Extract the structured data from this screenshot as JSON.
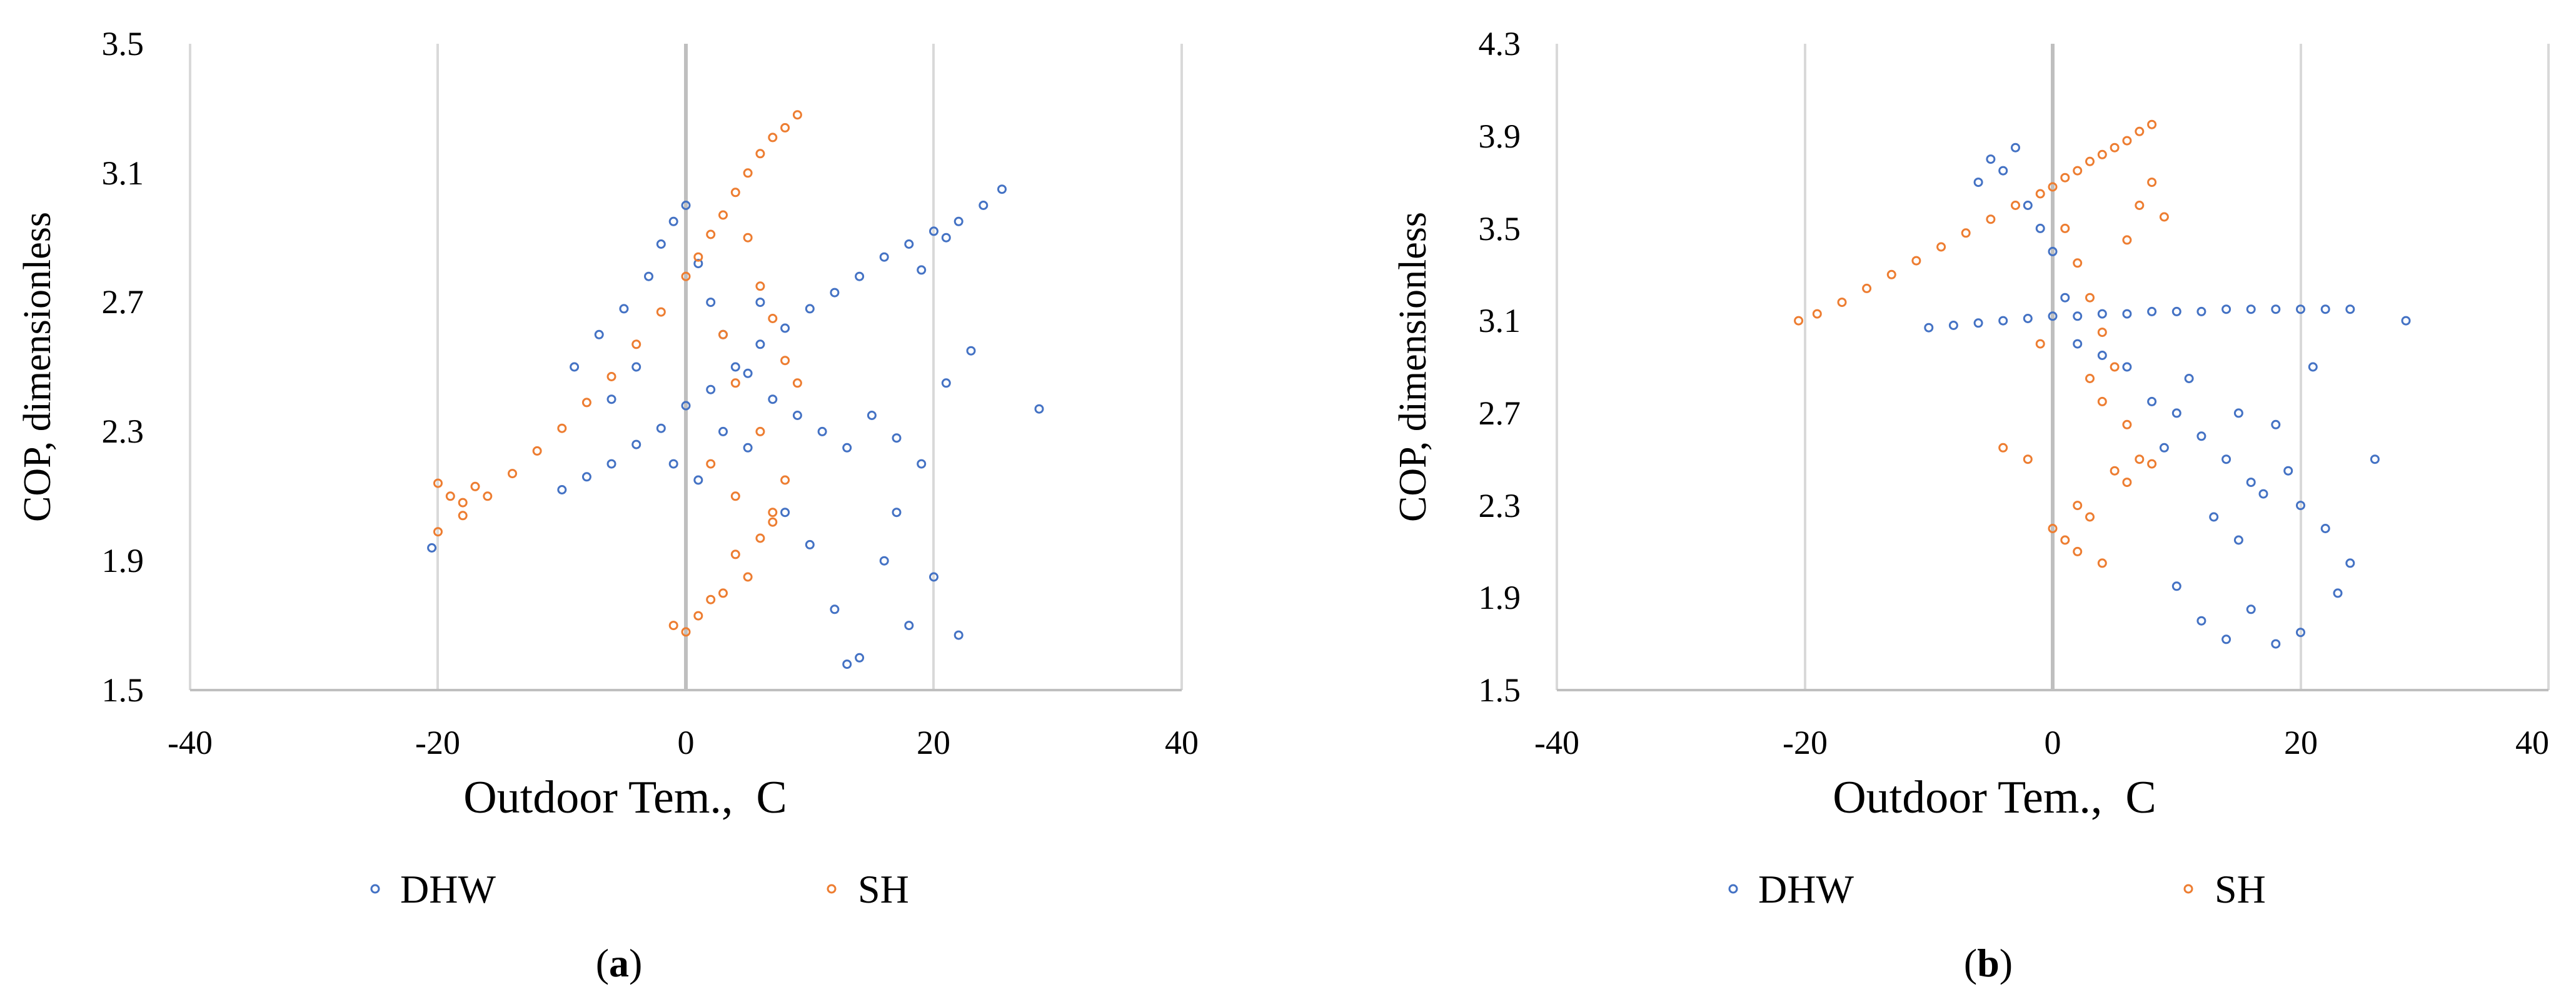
{
  "colors": {
    "DHW": "#4472C4",
    "SH": "#ED7D31",
    "grid": "#D9D9D9",
    "zero_axis": "#BFBFBF"
  },
  "chart_data": [
    {
      "type": "scatter",
      "panel": "a",
      "caption": "(a)",
      "caption_parts": [
        "(",
        "a",
        ")"
      ],
      "xlabel": "Outdoor Tem.,  C",
      "ylabel": "COP, dimensionless",
      "xlim": [
        -40,
        40
      ],
      "ylim": [
        1.5,
        3.5
      ],
      "xticks": [
        -40,
        -20,
        0,
        20,
        40
      ],
      "yticks": [
        1.5,
        1.9,
        2.3,
        2.7,
        3.1,
        3.5
      ],
      "xtick_labels": [
        "-40",
        "-20",
        "0",
        "20",
        "40"
      ],
      "ytick_labels": [
        "1.5",
        "1.9",
        "2.3",
        "2.7",
        "3.1",
        "3.5"
      ],
      "grid": "vertical",
      "legend": "bottom",
      "series": [
        {
          "name": "DHW",
          "points": [
            [
              -20.5,
              1.94
            ],
            [
              -10.0,
              2.12
            ],
            [
              -8.0,
              2.16
            ],
            [
              -6.0,
              2.2
            ],
            [
              -4.0,
              2.26
            ],
            [
              -2.0,
              2.31
            ],
            [
              0.0,
              2.38
            ],
            [
              2.0,
              2.43
            ],
            [
              4.0,
              2.5
            ],
            [
              6.0,
              2.57
            ],
            [
              8.0,
              2.62
            ],
            [
              10.0,
              2.68
            ],
            [
              12.0,
              2.73
            ],
            [
              14.0,
              2.78
            ],
            [
              16.0,
              2.84
            ],
            [
              18.0,
              2.88
            ],
            [
              20.0,
              2.92
            ],
            [
              22.0,
              2.95
            ],
            [
              24.0,
              3.0
            ],
            [
              25.5,
              3.05
            ],
            [
              -9.0,
              2.5
            ],
            [
              -7.0,
              2.6
            ],
            [
              -5.0,
              2.68
            ],
            [
              -3.0,
              2.78
            ],
            [
              -2.0,
              2.88
            ],
            [
              -1.0,
              2.95
            ],
            [
              0.0,
              3.0
            ],
            [
              1.0,
              2.82
            ],
            [
              2.0,
              2.7
            ],
            [
              3.0,
              2.6
            ],
            [
              5.0,
              2.48
            ],
            [
              7.0,
              2.4
            ],
            [
              9.0,
              2.35
            ],
            [
              11.0,
              2.3
            ],
            [
              13.0,
              2.25
            ],
            [
              15.0,
              2.35
            ],
            [
              17.0,
              2.28
            ],
            [
              19.0,
              2.2
            ],
            [
              21.0,
              2.45
            ],
            [
              23.0,
              2.55
            ],
            [
              28.5,
              2.37
            ],
            [
              8.0,
              2.05
            ],
            [
              10.0,
              1.95
            ],
            [
              12.0,
              1.75
            ],
            [
              14.0,
              1.6
            ],
            [
              16.0,
              1.9
            ],
            [
              18.0,
              1.7
            ],
            [
              20.0,
              1.85
            ],
            [
              22.0,
              1.67
            ],
            [
              -1.0,
              2.2
            ],
            [
              1.0,
              2.15
            ],
            [
              3.0,
              2.3
            ],
            [
              5.0,
              2.25
            ],
            [
              13.0,
              1.58
            ],
            [
              17.0,
              2.05
            ],
            [
              21.0,
              2.9
            ],
            [
              19.0,
              2.8
            ],
            [
              -6.0,
              2.4
            ],
            [
              -4.0,
              2.5
            ],
            [
              6.0,
              2.7
            ]
          ]
        },
        {
          "name": "SH",
          "points": [
            [
              -20.0,
              2.14
            ],
            [
              -19.0,
              2.1
            ],
            [
              -18.0,
              2.08
            ],
            [
              -17.0,
              2.13
            ],
            [
              -20.0,
              1.99
            ],
            [
              -18.0,
              2.04
            ],
            [
              -16.0,
              2.1
            ],
            [
              -14.0,
              2.17
            ],
            [
              -12.0,
              2.24
            ],
            [
              -10.0,
              2.31
            ],
            [
              -8.0,
              2.39
            ],
            [
              -6.0,
              2.47
            ],
            [
              -4.0,
              2.57
            ],
            [
              -2.0,
              2.67
            ],
            [
              0.0,
              2.78
            ],
            [
              1.0,
              2.84
            ],
            [
              2.0,
              2.91
            ],
            [
              3.0,
              2.97
            ],
            [
              4.0,
              3.04
            ],
            [
              5.0,
              3.1
            ],
            [
              6.0,
              3.16
            ],
            [
              7.0,
              3.21
            ],
            [
              8.0,
              3.24
            ],
            [
              9.0,
              3.28
            ],
            [
              5.0,
              2.9
            ],
            [
              6.0,
              2.75
            ],
            [
              7.0,
              2.65
            ],
            [
              8.0,
              2.52
            ],
            [
              9.0,
              2.45
            ],
            [
              3.0,
              2.6
            ],
            [
              4.0,
              2.45
            ],
            [
              2.0,
              2.2
            ],
            [
              4.0,
              2.1
            ],
            [
              6.0,
              2.3
            ],
            [
              7.0,
              2.05
            ],
            [
              3.0,
              1.8
            ],
            [
              4.0,
              1.92
            ],
            [
              5.0,
              1.85
            ],
            [
              6.0,
              1.97
            ],
            [
              7.0,
              2.02
            ],
            [
              -1.0,
              1.7
            ],
            [
              0.0,
              1.68
            ],
            [
              1.0,
              1.73
            ],
            [
              2.0,
              1.78
            ],
            [
              8.0,
              2.15
            ]
          ]
        }
      ]
    },
    {
      "type": "scatter",
      "panel": "b",
      "caption": "(b)",
      "caption_parts": [
        "(",
        "b",
        ")"
      ],
      "xlabel": "Outdoor Tem.,  C",
      "ylabel": "COP, dimensionless",
      "xlim": [
        -40,
        40
      ],
      "ylim": [
        1.5,
        4.3
      ],
      "xticks": [
        -40,
        -20,
        0,
        20,
        40
      ],
      "yticks": [
        1.5,
        1.9,
        2.3,
        2.7,
        3.1,
        3.5,
        3.9,
        4.3
      ],
      "xtick_labels": [
        "-40",
        "-20",
        "0",
        "20",
        "40"
      ],
      "ytick_labels": [
        "1.5",
        "1.9",
        "2.3",
        "2.7",
        "3.1",
        "3.5",
        "3.9",
        "4.3"
      ],
      "grid": "vertical",
      "legend": "bottom",
      "series": [
        {
          "name": "DHW",
          "points": [
            [
              -10.0,
              3.07
            ],
            [
              -8.0,
              3.08
            ],
            [
              -6.0,
              3.09
            ],
            [
              -4.0,
              3.1
            ],
            [
              -2.0,
              3.11
            ],
            [
              0.0,
              3.12
            ],
            [
              2.0,
              3.12
            ],
            [
              4.0,
              3.13
            ],
            [
              6.0,
              3.13
            ],
            [
              8.0,
              3.14
            ],
            [
              10.0,
              3.14
            ],
            [
              12.0,
              3.14
            ],
            [
              14.0,
              3.15
            ],
            [
              16.0,
              3.15
            ],
            [
              18.0,
              3.15
            ],
            [
              20.0,
              3.15
            ],
            [
              22.0,
              3.15
            ],
            [
              24.0,
              3.15
            ],
            [
              28.5,
              3.1
            ],
            [
              -6.0,
              3.7
            ],
            [
              -5.0,
              3.8
            ],
            [
              -4.0,
              3.75
            ],
            [
              -3.0,
              3.85
            ],
            [
              -2.0,
              3.6
            ],
            [
              -1.0,
              3.5
            ],
            [
              0.0,
              3.4
            ],
            [
              1.0,
              3.2
            ],
            [
              2.0,
              3.0
            ],
            [
              4.0,
              2.95
            ],
            [
              6.0,
              2.9
            ],
            [
              8.0,
              2.75
            ],
            [
              10.0,
              2.7
            ],
            [
              12.0,
              2.6
            ],
            [
              14.0,
              2.5
            ],
            [
              16.0,
              2.4
            ],
            [
              18.0,
              2.65
            ],
            [
              20.0,
              2.3
            ],
            [
              22.0,
              2.2
            ],
            [
              24.0,
              2.05
            ],
            [
              26.0,
              2.5
            ],
            [
              10.0,
              1.95
            ],
            [
              12.0,
              1.8
            ],
            [
              14.0,
              1.72
            ],
            [
              16.0,
              1.85
            ],
            [
              18.0,
              1.7
            ],
            [
              20.0,
              1.75
            ],
            [
              13.0,
              2.25
            ],
            [
              15.0,
              2.15
            ],
            [
              17.0,
              2.35
            ],
            [
              19.0,
              2.45
            ],
            [
              23.0,
              1.92
            ],
            [
              11.0,
              2.85
            ],
            [
              9.0,
              2.55
            ],
            [
              15.0,
              2.7
            ],
            [
              21.0,
              2.9
            ]
          ]
        },
        {
          "name": "SH",
          "points": [
            [
              -20.5,
              3.1
            ],
            [
              -19.0,
              3.13
            ],
            [
              -17.0,
              3.18
            ],
            [
              -15.0,
              3.24
            ],
            [
              -13.0,
              3.3
            ],
            [
              -11.0,
              3.36
            ],
            [
              -9.0,
              3.42
            ],
            [
              -7.0,
              3.48
            ],
            [
              -5.0,
              3.54
            ],
            [
              -3.0,
              3.6
            ],
            [
              -1.0,
              3.65
            ],
            [
              0.0,
              3.68
            ],
            [
              1.0,
              3.72
            ],
            [
              2.0,
              3.75
            ],
            [
              3.0,
              3.79
            ],
            [
              4.0,
              3.82
            ],
            [
              5.0,
              3.85
            ],
            [
              6.0,
              3.88
            ],
            [
              7.0,
              3.92
            ],
            [
              8.0,
              3.95
            ],
            [
              1.0,
              3.5
            ],
            [
              2.0,
              3.35
            ],
            [
              3.0,
              3.2
            ],
            [
              4.0,
              3.05
            ],
            [
              5.0,
              2.9
            ],
            [
              6.0,
              3.45
            ],
            [
              7.0,
              3.6
            ],
            [
              8.0,
              3.7
            ],
            [
              9.0,
              3.55
            ],
            [
              -2.0,
              2.5
            ],
            [
              -1.0,
              3.0
            ],
            [
              0.0,
              2.2
            ],
            [
              1.0,
              2.15
            ],
            [
              2.0,
              2.1
            ],
            [
              3.0,
              2.25
            ],
            [
              4.0,
              2.75
            ],
            [
              5.0,
              2.45
            ],
            [
              6.0,
              2.4
            ],
            [
              7.0,
              2.5
            ],
            [
              8.0,
              2.48
            ],
            [
              -4.0,
              2.55
            ],
            [
              2.0,
              2.3
            ],
            [
              4.0,
              2.05
            ],
            [
              6.0,
              2.65
            ],
            [
              3.0,
              2.85
            ]
          ]
        }
      ]
    }
  ]
}
